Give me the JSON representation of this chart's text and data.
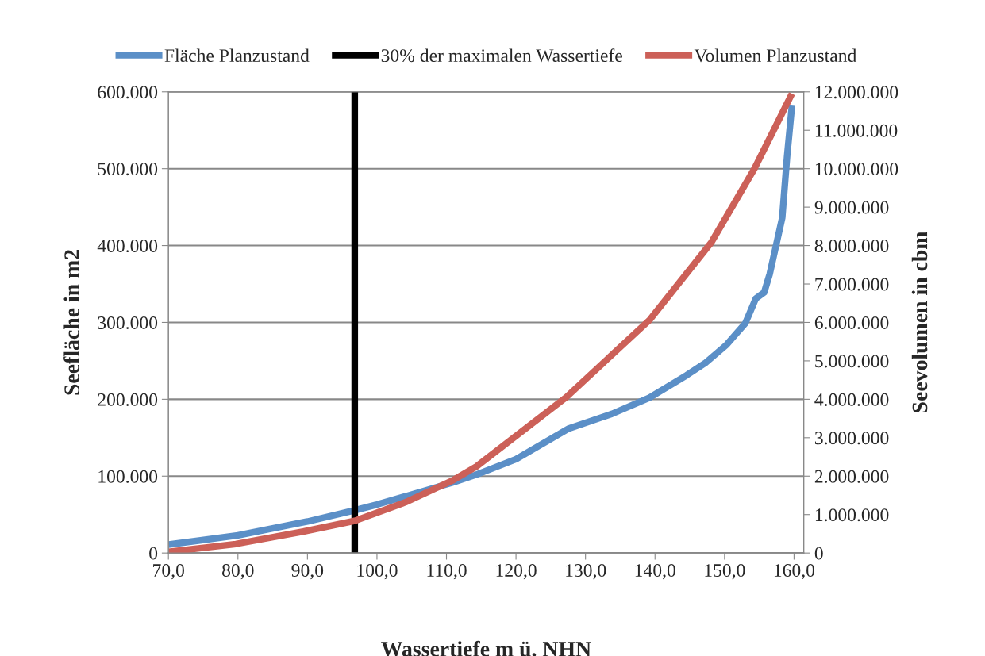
{
  "chart_data": {
    "type": "line",
    "xlabel": "Wassertiefe m ü. NHN",
    "ylabel": "Seefläche in m2",
    "y2label": "Seevolumen in cbm",
    "xlim": [
      70,
      161.4
    ],
    "xticks": [
      {
        "value": 70,
        "label": "70,0"
      },
      {
        "value": 80,
        "label": "80,0"
      },
      {
        "value": 90,
        "label": "90,0"
      },
      {
        "value": 100,
        "label": "100,0"
      },
      {
        "value": 110,
        "label": "110,0"
      },
      {
        "value": 120,
        "label": "120,0"
      },
      {
        "value": 130,
        "label": "130,0"
      },
      {
        "value": 140,
        "label": "140,0"
      },
      {
        "value": 150,
        "label": "150,0"
      },
      {
        "value": 160,
        "label": "160,0"
      }
    ],
    "ylim": [
      0,
      600000
    ],
    "yticks": [
      0,
      {
        "value": 100000,
        "label": "100.000"
      },
      {
        "value": 200000,
        "label": "200.000"
      },
      {
        "value": 300000,
        "label": "300.000"
      },
      {
        "value": 400000,
        "label": "400.000"
      },
      {
        "value": 500000,
        "label": "500.000"
      },
      {
        "value": 600000,
        "label": "600.000"
      }
    ],
    "y2lim": [
      0,
      12000000
    ],
    "y2ticks": [
      0,
      {
        "value": 1000000,
        "label": "1.000.000"
      },
      {
        "value": 2000000,
        "label": "2.000.000"
      },
      {
        "value": 3000000,
        "label": "3.000.000"
      },
      {
        "value": 4000000,
        "label": "4.000.000"
      },
      {
        "value": 5000000,
        "label": "5.000.000"
      },
      {
        "value": 6000000,
        "label": "6.000.000"
      },
      {
        "value": 7000000,
        "label": "7.000.000"
      },
      {
        "value": 8000000,
        "label": "8.000.000"
      },
      {
        "value": 9000000,
        "label": "9.000.000"
      },
      {
        "value": 10000000,
        "label": "10.000.000"
      },
      {
        "value": 11000000,
        "label": "11.000.000"
      },
      {
        "value": 12000000,
        "label": "12.000.000"
      }
    ],
    "grid": "y",
    "legend": "top",
    "marker": "none",
    "line_style": "solid",
    "series": [
      {
        "name": "Fläche Planzustand",
        "color": "#5b8fc7",
        "x": [
          70,
          80,
          90,
          97,
          100,
          111,
          114.3,
          120,
          127.6,
          133.8,
          139.2,
          144.5,
          147.2,
          150.3,
          153.0,
          154.5,
          155.7,
          156.5,
          158.3,
          159.0,
          159.7
        ],
        "values": [
          11000,
          23000,
          41000,
          56000,
          63000,
          92000,
          102000,
          122000,
          162000,
          181000,
          202000,
          231000,
          247000,
          271000,
          299000,
          331000,
          339000,
          363000,
          436000,
          516000,
          582000
        ]
      },
      {
        "name": "30% der maximalen Wassertiefe",
        "color": "#000000",
        "x": [
          96.8,
          96.8
        ],
        "values": [
          0,
          600000
        ]
      },
      {
        "name": "Volumen Planzustand",
        "color": "#cc6058",
        "axis": "y2",
        "x": [
          70,
          79.7,
          89.4,
          96.8,
          104.1,
          110.8,
          114.3,
          127.2,
          139.2,
          148.1,
          154.3,
          159.7
        ],
        "values": [
          30000,
          235000,
          557000,
          838000,
          1320000,
          1880000,
          2250000,
          4050000,
          6060000,
          8080000,
          10000000,
          11950000
        ]
      }
    ]
  }
}
